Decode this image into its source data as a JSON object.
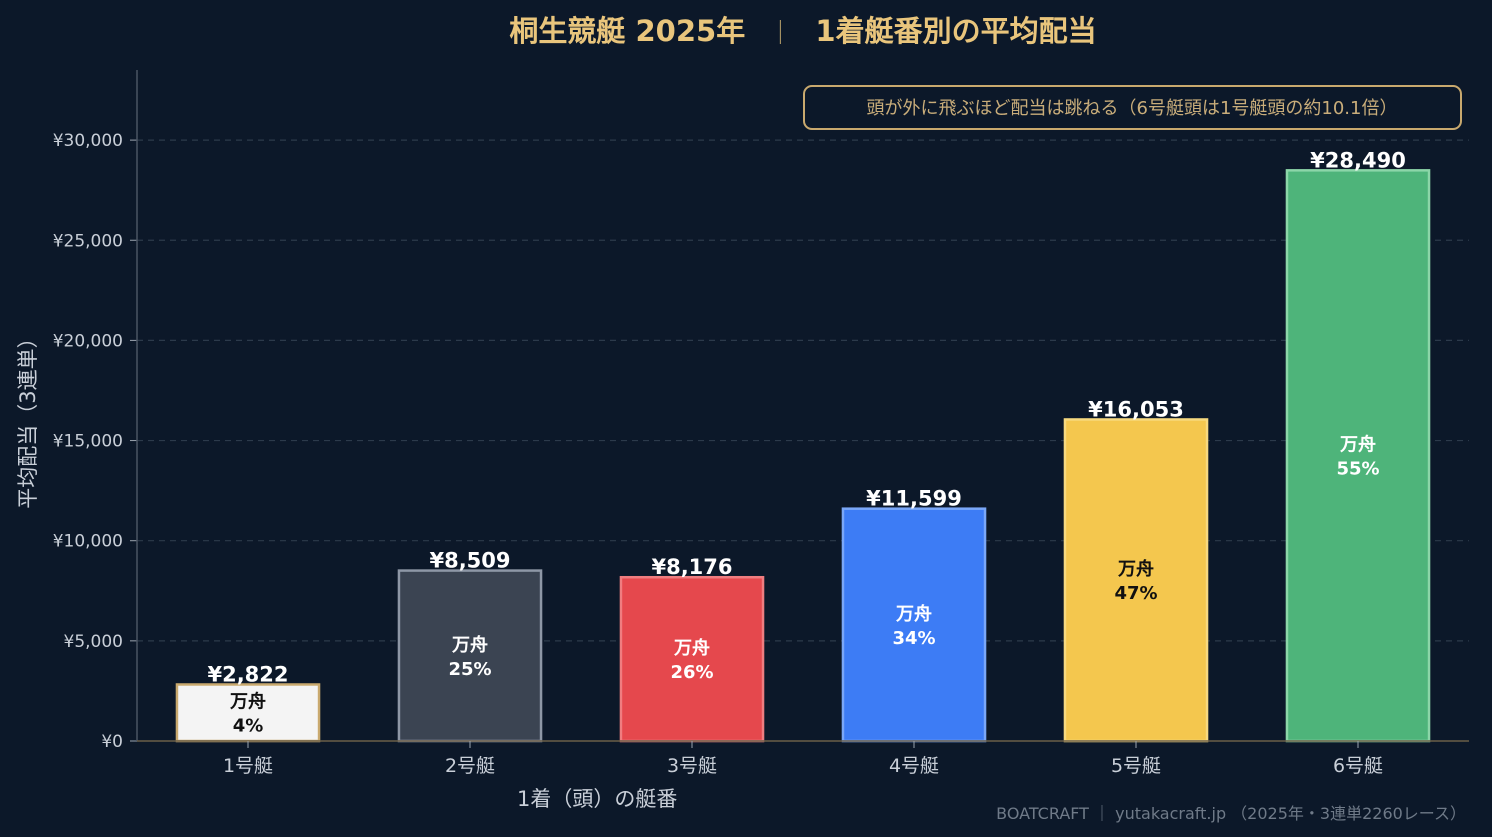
{
  "title": "桐生競艇 2025年",
  "title_separator": "｜",
  "subtitle": "1着艇番別の平均配当",
  "annotation": "頭が外に飛ぶほど配当は跳ねる（6号艇頭は1号艇頭の約10.1倍）",
  "footer": "BOATCRAFT ｜ yutakacraft.jp （2025年・3連単2260レース）",
  "chart_data": {
    "type": "bar",
    "title": "桐生競艇 2025年 ｜ 1着艇番別の平均配当",
    "xlabel": "1着（頭）の艇番",
    "ylabel": "平均配当（3連単）",
    "ylim": [
      0,
      33500
    ],
    "yticks": [
      0,
      5000,
      10000,
      15000,
      20000,
      25000,
      30000
    ],
    "ytick_labels": [
      "¥0",
      "¥5,000",
      "¥10,000",
      "¥15,000",
      "¥20,000",
      "¥25,000",
      "¥30,000"
    ],
    "grid": true,
    "categories": [
      "1号艇",
      "2号艇",
      "3号艇",
      "4号艇",
      "5号艇",
      "6号艇"
    ],
    "values": [
      2822,
      8509,
      8176,
      11599,
      16053,
      28490
    ],
    "value_labels": [
      "¥2,822",
      "¥8,509",
      "¥8,176",
      "¥11,599",
      "¥16,053",
      "¥28,490"
    ],
    "inner_title": "万舟",
    "inner_values": [
      "4%",
      "25%",
      "26%",
      "34%",
      "47%",
      "55%"
    ],
    "colors": [
      "#f4f4f4",
      "#3b4452",
      "#e5484d",
      "#3d7cf5",
      "#f4c74e",
      "#4eb47a"
    ],
    "edge_colors": [
      "#c9a96e",
      "#8e97a6",
      "#f07d80",
      "#7aa7f8",
      "#f7d97f",
      "#8cd6a8"
    ],
    "inner_text_colors": [
      "#111111",
      "#ffffff",
      "#ffffff",
      "#ffffff",
      "#111111",
      "#ffffff"
    ]
  }
}
